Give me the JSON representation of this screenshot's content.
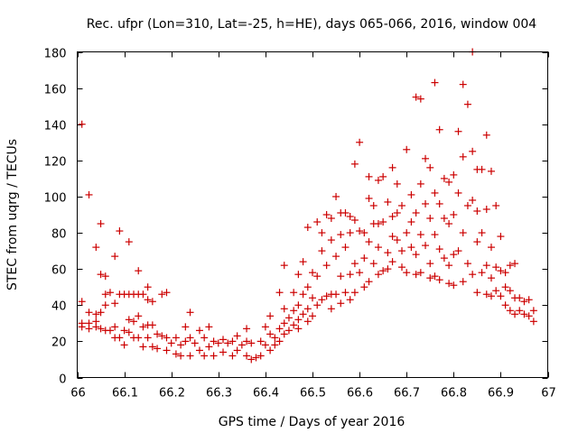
{
  "chart_data": {
    "type": "scatter",
    "title": "Rec. ufpr (Lon=310, Lat=-25, h=HE), days 065-066, 2016, window 004",
    "xlabel": "GPS time / Days of year 2016",
    "ylabel": "STEC from uqrg / TECUs",
    "xlim": [
      66,
      67
    ],
    "ylim": [
      0,
      180
    ],
    "xticks": [
      66,
      66.1,
      66.2,
      66.3,
      66.4,
      66.5,
      66.6,
      66.7,
      66.8,
      66.9,
      67
    ],
    "xtick_labels": [
      "66",
      "66.1",
      "66.2",
      "66.3",
      "66.4",
      "66.5",
      "66.6",
      "66.7",
      "66.8",
      "66.9",
      "67"
    ],
    "yticks": [
      0,
      20,
      40,
      60,
      80,
      100,
      120,
      140,
      160,
      180
    ],
    "ytick_labels": [
      "0",
      "20",
      "40",
      "60",
      "80",
      "100",
      "120",
      "140",
      "160",
      "180"
    ],
    "grid": false,
    "legend": "none",
    "marker": "+",
    "color": "#cc0000",
    "points": [
      [
        66.01,
        140
      ],
      [
        66.01,
        42
      ],
      [
        66.01,
        30
      ],
      [
        66.01,
        28
      ],
      [
        66.025,
        101
      ],
      [
        66.025,
        36
      ],
      [
        66.025,
        30
      ],
      [
        66.025,
        27
      ],
      [
        66.04,
        72
      ],
      [
        66.04,
        35
      ],
      [
        66.04,
        31
      ],
      [
        66.04,
        28
      ],
      [
        66.05,
        85
      ],
      [
        66.05,
        57
      ],
      [
        66.05,
        36
      ],
      [
        66.05,
        27
      ],
      [
        66.06,
        56
      ],
      [
        66.06,
        46
      ],
      [
        66.06,
        40
      ],
      [
        66.06,
        26
      ],
      [
        66.07,
        47
      ],
      [
        66.07,
        26
      ],
      [
        66.08,
        67
      ],
      [
        66.08,
        41
      ],
      [
        66.08,
        28
      ],
      [
        66.08,
        22
      ],
      [
        66.09,
        81
      ],
      [
        66.09,
        46
      ],
      [
        66.09,
        22
      ],
      [
        66.1,
        46
      ],
      [
        66.1,
        26
      ],
      [
        66.1,
        18
      ],
      [
        66.11,
        75
      ],
      [
        66.11,
        46
      ],
      [
        66.11,
        32
      ],
      [
        66.11,
        25
      ],
      [
        66.12,
        46
      ],
      [
        66.12,
        31
      ],
      [
        66.12,
        22
      ],
      [
        66.13,
        59
      ],
      [
        66.13,
        46
      ],
      [
        66.13,
        34
      ],
      [
        66.13,
        22
      ],
      [
        66.14,
        46
      ],
      [
        66.14,
        28
      ],
      [
        66.14,
        17
      ],
      [
        66.15,
        50
      ],
      [
        66.15,
        43
      ],
      [
        66.15,
        29
      ],
      [
        66.15,
        22
      ],
      [
        66.16,
        42
      ],
      [
        66.16,
        29
      ],
      [
        66.16,
        17
      ],
      [
        66.17,
        24
      ],
      [
        66.17,
        16
      ],
      [
        66.18,
        46
      ],
      [
        66.18,
        23
      ],
      [
        66.19,
        47
      ],
      [
        66.19,
        22
      ],
      [
        66.19,
        15
      ],
      [
        66.2,
        19
      ],
      [
        66.21,
        22
      ],
      [
        66.21,
        13
      ],
      [
        66.22,
        18
      ],
      [
        66.22,
        12
      ],
      [
        66.23,
        28
      ],
      [
        66.23,
        20
      ],
      [
        66.24,
        36
      ],
      [
        66.24,
        22
      ],
      [
        66.24,
        12
      ],
      [
        66.25,
        19
      ],
      [
        66.26,
        26
      ],
      [
        66.26,
        15
      ],
      [
        66.27,
        22
      ],
      [
        66.27,
        12
      ],
      [
        66.28,
        28
      ],
      [
        66.28,
        17
      ],
      [
        66.29,
        20
      ],
      [
        66.29,
        12
      ],
      [
        66.3,
        19
      ],
      [
        66.31,
        21
      ],
      [
        66.31,
        14
      ],
      [
        66.32,
        19
      ],
      [
        66.33,
        20
      ],
      [
        66.33,
        12
      ],
      [
        66.34,
        23
      ],
      [
        66.34,
        15
      ],
      [
        66.35,
        18
      ],
      [
        66.36,
        27
      ],
      [
        66.36,
        20
      ],
      [
        66.36,
        12
      ],
      [
        66.37,
        19
      ],
      [
        66.37,
        10
      ],
      [
        66.38,
        11
      ],
      [
        66.39,
        20
      ],
      [
        66.39,
        12
      ],
      [
        66.4,
        28
      ],
      [
        66.4,
        18
      ],
      [
        66.41,
        34
      ],
      [
        66.41,
        24
      ],
      [
        66.41,
        15
      ],
      [
        66.42,
        22
      ],
      [
        66.42,
        18
      ],
      [
        66.43,
        47
      ],
      [
        66.43,
        27
      ],
      [
        66.43,
        20
      ],
      [
        66.44,
        62
      ],
      [
        66.44,
        38
      ],
      [
        66.44,
        30
      ],
      [
        66.44,
        24
      ],
      [
        66.45,
        33
      ],
      [
        66.45,
        26
      ],
      [
        66.46,
        47
      ],
      [
        66.46,
        37
      ],
      [
        66.46,
        29
      ],
      [
        66.47,
        57
      ],
      [
        66.47,
        40
      ],
      [
        66.47,
        32
      ],
      [
        66.47,
        27
      ],
      [
        66.48,
        64
      ],
      [
        66.48,
        46
      ],
      [
        66.48,
        35
      ],
      [
        66.49,
        83
      ],
      [
        66.49,
        50
      ],
      [
        66.49,
        38
      ],
      [
        66.49,
        31
      ],
      [
        66.5,
        58
      ],
      [
        66.5,
        44
      ],
      [
        66.5,
        34
      ],
      [
        66.51,
        86
      ],
      [
        66.51,
        56
      ],
      [
        66.51,
        40
      ],
      [
        66.52,
        80
      ],
      [
        66.52,
        70
      ],
      [
        66.52,
        43
      ],
      [
        66.53,
        90
      ],
      [
        66.53,
        62
      ],
      [
        66.53,
        45
      ],
      [
        66.54,
        88
      ],
      [
        66.54,
        76
      ],
      [
        66.54,
        46
      ],
      [
        66.54,
        38
      ],
      [
        66.55,
        100
      ],
      [
        66.55,
        67
      ],
      [
        66.55,
        46
      ],
      [
        66.56,
        91
      ],
      [
        66.56,
        79
      ],
      [
        66.56,
        56
      ],
      [
        66.56,
        41
      ],
      [
        66.57,
        91
      ],
      [
        66.57,
        72
      ],
      [
        66.57,
        47
      ],
      [
        66.58,
        89
      ],
      [
        66.58,
        80
      ],
      [
        66.58,
        57
      ],
      [
        66.58,
        43
      ],
      [
        66.59,
        118
      ],
      [
        66.59,
        87
      ],
      [
        66.59,
        63
      ],
      [
        66.59,
        47
      ],
      [
        66.6,
        130
      ],
      [
        66.6,
        81
      ],
      [
        66.6,
        58
      ],
      [
        66.61,
        80
      ],
      [
        66.61,
        66
      ],
      [
        66.61,
        50
      ],
      [
        66.62,
        111
      ],
      [
        66.62,
        99
      ],
      [
        66.62,
        75
      ],
      [
        66.62,
        53
      ],
      [
        66.63,
        95
      ],
      [
        66.63,
        85
      ],
      [
        66.63,
        63
      ],
      [
        66.64,
        109
      ],
      [
        66.64,
        85
      ],
      [
        66.64,
        72
      ],
      [
        66.64,
        57
      ],
      [
        66.65,
        111
      ],
      [
        66.65,
        86
      ],
      [
        66.65,
        59
      ],
      [
        66.66,
        97
      ],
      [
        66.66,
        69
      ],
      [
        66.66,
        60
      ],
      [
        66.67,
        116
      ],
      [
        66.67,
        89
      ],
      [
        66.67,
        78
      ],
      [
        66.67,
        64
      ],
      [
        66.68,
        107
      ],
      [
        66.68,
        91
      ],
      [
        66.68,
        76
      ],
      [
        66.69,
        95
      ],
      [
        66.69,
        70
      ],
      [
        66.69,
        61
      ],
      [
        66.7,
        126
      ],
      [
        66.7,
        80
      ],
      [
        66.7,
        58
      ],
      [
        66.71,
        101
      ],
      [
        66.71,
        86
      ],
      [
        66.71,
        72
      ],
      [
        66.72,
        155
      ],
      [
        66.72,
        91
      ],
      [
        66.72,
        68
      ],
      [
        66.72,
        57
      ],
      [
        66.73,
        154
      ],
      [
        66.73,
        107
      ],
      [
        66.73,
        79
      ],
      [
        66.73,
        58
      ],
      [
        66.74,
        121
      ],
      [
        66.74,
        96
      ],
      [
        66.74,
        73
      ],
      [
        66.75,
        116
      ],
      [
        66.75,
        88
      ],
      [
        66.75,
        63
      ],
      [
        66.75,
        55
      ],
      [
        66.76,
        163
      ],
      [
        66.76,
        102
      ],
      [
        66.76,
        79
      ],
      [
        66.76,
        56
      ],
      [
        66.77,
        137
      ],
      [
        66.77,
        96
      ],
      [
        66.77,
        71
      ],
      [
        66.77,
        54
      ],
      [
        66.78,
        110
      ],
      [
        66.78,
        88
      ],
      [
        66.78,
        66
      ],
      [
        66.79,
        108
      ],
      [
        66.79,
        85
      ],
      [
        66.79,
        62
      ],
      [
        66.79,
        52
      ],
      [
        66.8,
        112
      ],
      [
        66.8,
        90
      ],
      [
        66.8,
        68
      ],
      [
        66.8,
        51
      ],
      [
        66.81,
        136
      ],
      [
        66.81,
        102
      ],
      [
        66.81,
        70
      ],
      [
        66.82,
        162
      ],
      [
        66.82,
        122
      ],
      [
        66.82,
        80
      ],
      [
        66.82,
        53
      ],
      [
        66.83,
        151
      ],
      [
        66.83,
        95
      ],
      [
        66.83,
        63
      ],
      [
        66.84,
        180
      ],
      [
        66.84,
        125
      ],
      [
        66.84,
        98
      ],
      [
        66.84,
        57
      ],
      [
        66.85,
        115
      ],
      [
        66.85,
        92
      ],
      [
        66.85,
        75
      ],
      [
        66.85,
        47
      ],
      [
        66.86,
        115
      ],
      [
        66.86,
        80
      ],
      [
        66.86,
        58
      ],
      [
        66.87,
        134
      ],
      [
        66.87,
        93
      ],
      [
        66.87,
        62
      ],
      [
        66.87,
        46
      ],
      [
        66.88,
        114
      ],
      [
        66.88,
        72
      ],
      [
        66.88,
        55
      ],
      [
        66.88,
        45
      ],
      [
        66.89,
        95
      ],
      [
        66.89,
        61
      ],
      [
        66.89,
        48
      ],
      [
        66.9,
        78
      ],
      [
        66.9,
        59
      ],
      [
        66.9,
        45
      ],
      [
        66.91,
        58
      ],
      [
        66.91,
        50
      ],
      [
        66.91,
        40
      ],
      [
        66.92,
        62
      ],
      [
        66.92,
        48
      ],
      [
        66.92,
        37
      ],
      [
        66.93,
        63
      ],
      [
        66.93,
        44
      ],
      [
        66.93,
        35
      ],
      [
        66.94,
        44
      ],
      [
        66.94,
        37
      ],
      [
        66.95,
        42
      ],
      [
        66.95,
        35
      ],
      [
        66.96,
        43
      ],
      [
        66.96,
        34
      ],
      [
        66.97,
        37
      ],
      [
        66.97,
        31
      ]
    ]
  }
}
